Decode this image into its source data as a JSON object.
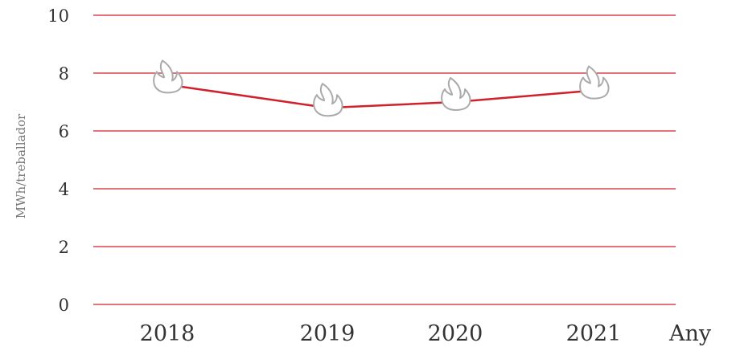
{
  "chart_data": {
    "type": "line",
    "title": "",
    "xlabel": "Any",
    "ylabel": "MWh/treballador",
    "categories": [
      "2018",
      "2019",
      "2020",
      "2021"
    ],
    "series": [
      {
        "values": [
          7.6,
          6.8,
          7.0,
          7.4
        ]
      }
    ],
    "ylim": [
      0,
      10
    ],
    "yticks": [
      "0",
      "2",
      "4",
      "6",
      "8",
      "10"
    ],
    "grid": true,
    "marker": "flame-icon",
    "colors": {
      "line": "#d0202a",
      "grid": "#d0202a",
      "marker": "#aaaaaa"
    }
  }
}
